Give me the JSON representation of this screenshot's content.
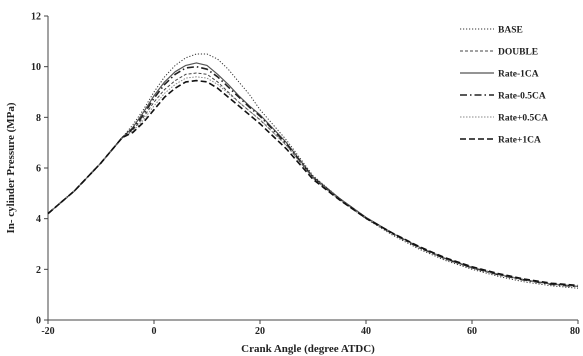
{
  "chart_data": {
    "type": "line",
    "title": "",
    "xlabel": "Crank Angle (degree ATDC)",
    "ylabel": "In- cylinder Pressure (MPa)",
    "xlim": [
      -20,
      80
    ],
    "ylim": [
      0,
      12
    ],
    "xticks": [
      -20,
      0,
      20,
      40,
      60,
      80
    ],
    "yticks": [
      0,
      2,
      4,
      6,
      8,
      10,
      12
    ],
    "grid": false,
    "legend_position": "top-right",
    "series": [
      {
        "name": "BASE",
        "style": "dotted",
        "color": "#333333",
        "x": [
          -20,
          -15,
          -10,
          -6,
          -4,
          -2,
          0,
          2,
          4,
          6,
          8,
          10,
          12,
          14,
          16,
          18,
          20,
          25,
          30,
          35,
          40,
          45,
          50,
          55,
          60,
          65,
          70,
          75,
          80
        ],
        "y": [
          4.2,
          5.1,
          6.2,
          7.2,
          7.7,
          8.3,
          9.0,
          9.6,
          10.05,
          10.35,
          10.5,
          10.5,
          10.3,
          9.9,
          9.4,
          8.9,
          8.3,
          7.1,
          5.7,
          4.8,
          4.0,
          3.35,
          2.8,
          2.35,
          2.0,
          1.72,
          1.5,
          1.35,
          1.25
        ]
      },
      {
        "name": "DOUBLE",
        "style": "dashed-fine",
        "color": "#444444",
        "x": [
          -20,
          -15,
          -10,
          -6,
          -4,
          -2,
          0,
          2,
          4,
          6,
          8,
          10,
          12,
          14,
          16,
          18,
          20,
          25,
          30,
          35,
          40,
          45,
          50,
          55,
          60,
          65,
          70,
          75,
          80
        ],
        "y": [
          4.2,
          5.1,
          6.2,
          7.2,
          7.5,
          8.0,
          8.6,
          9.1,
          9.45,
          9.7,
          9.75,
          9.7,
          9.4,
          9.0,
          8.6,
          8.25,
          7.9,
          6.9,
          5.6,
          4.75,
          4.0,
          3.4,
          2.85,
          2.4,
          2.05,
          1.78,
          1.57,
          1.42,
          1.32
        ]
      },
      {
        "name": "Rate-1CA",
        "style": "solid",
        "color": "#555555",
        "x": [
          -20,
          -15,
          -10,
          -6,
          -4,
          -2,
          0,
          2,
          4,
          6,
          8,
          10,
          12,
          14,
          16,
          18,
          20,
          25,
          30,
          35,
          40,
          45,
          50,
          55,
          60,
          65,
          70,
          75,
          80
        ],
        "y": [
          4.2,
          5.1,
          6.2,
          7.2,
          7.6,
          8.2,
          8.85,
          9.4,
          9.8,
          10.05,
          10.15,
          10.05,
          9.7,
          9.3,
          8.85,
          8.45,
          8.1,
          7.0,
          5.65,
          4.8,
          4.05,
          3.43,
          2.88,
          2.43,
          2.08,
          1.8,
          1.58,
          1.42,
          1.33
        ]
      },
      {
        "name": "Rate-0.5CA",
        "style": "dash-dot",
        "color": "#222222",
        "x": [
          -20,
          -15,
          -10,
          -6,
          -4,
          -2,
          0,
          2,
          4,
          6,
          8,
          10,
          12,
          14,
          16,
          18,
          20,
          25,
          30,
          35,
          40,
          45,
          50,
          55,
          60,
          65,
          70,
          75,
          80
        ],
        "y": [
          4.2,
          5.1,
          6.2,
          7.2,
          7.55,
          8.1,
          8.75,
          9.3,
          9.7,
          9.95,
          10.0,
          9.9,
          9.6,
          9.2,
          8.8,
          8.4,
          8.05,
          6.95,
          5.62,
          4.78,
          4.03,
          3.42,
          2.87,
          2.42,
          2.07,
          1.79,
          1.57,
          1.41,
          1.32
        ]
      },
      {
        "name": "Rate+0.5CA",
        "style": "dotted-light",
        "color": "#888888",
        "x": [
          -20,
          -15,
          -10,
          -6,
          -4,
          -2,
          0,
          2,
          4,
          6,
          8,
          10,
          12,
          14,
          16,
          18,
          20,
          25,
          30,
          35,
          40,
          45,
          50,
          55,
          60,
          65,
          70,
          75,
          80
        ],
        "y": [
          4.2,
          5.1,
          6.2,
          7.2,
          7.45,
          7.9,
          8.45,
          8.95,
          9.3,
          9.55,
          9.6,
          9.55,
          9.3,
          8.95,
          8.6,
          8.25,
          7.92,
          6.88,
          5.6,
          4.77,
          4.03,
          3.43,
          2.89,
          2.44,
          2.09,
          1.81,
          1.59,
          1.43,
          1.34
        ]
      },
      {
        "name": "Rate+1CA",
        "style": "dashed",
        "color": "#111111",
        "x": [
          -20,
          -15,
          -10,
          -6,
          -4,
          -2,
          0,
          2,
          4,
          6,
          8,
          10,
          12,
          14,
          16,
          18,
          20,
          25,
          30,
          35,
          40,
          45,
          50,
          55,
          60,
          65,
          70,
          75,
          80
        ],
        "y": [
          4.2,
          5.1,
          6.2,
          7.2,
          7.4,
          7.8,
          8.3,
          8.8,
          9.15,
          9.4,
          9.45,
          9.4,
          9.15,
          8.8,
          8.45,
          8.1,
          7.75,
          6.75,
          5.55,
          4.74,
          4.02,
          3.43,
          2.9,
          2.45,
          2.1,
          1.83,
          1.61,
          1.45,
          1.36
        ]
      }
    ]
  }
}
